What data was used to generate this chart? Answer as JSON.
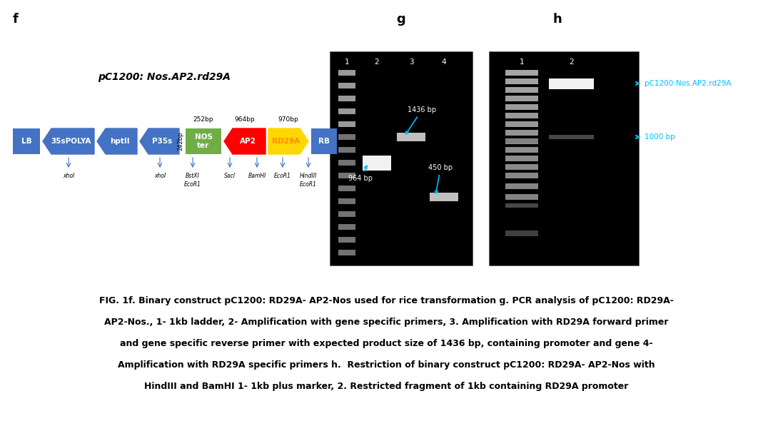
{
  "title_f": "f",
  "title_g": "g",
  "title_h": "h",
  "construct_title": "pC1200: Nos.AP2.rd29A",
  "caption_lines": [
    "FIG. 1f. Binary construct pC1200: RD29A- AP2-Nos used for rice transformation g. PCR analysis of pC1200: RD29A-",
    "AP2-Nos., 1- 1kb ladder, 2- Amplification with gene specific primers, 3. Amplification with RD29A forward primer",
    "and gene specific reverse primer with expected product size of 1436 bp, containing promoter and gene 4-",
    "Amplification with RD29A specific primers h.  Restriction of binary construct pC1200: RD29A- AP2-Nos with",
    "HindIII and BamHI 1- 1kb plus marker, 2. Restricted fragment of 1kb containing RD29A promoter"
  ],
  "bg_color": "#FFFFFF"
}
